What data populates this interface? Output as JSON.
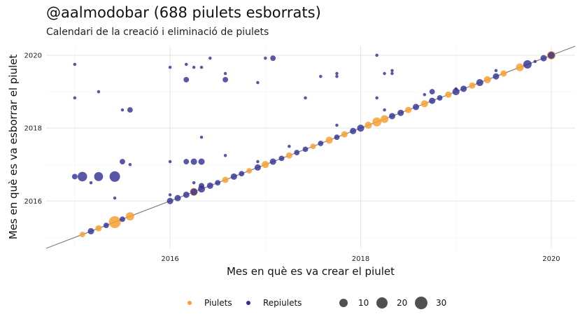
{
  "chart_data": {
    "type": "scatter",
    "title": "@aalmodobar (688 piulets esborrats)",
    "subtitle": "Calendari de la creació i eliminació de piulets",
    "xlabel": "Mes en què es va crear el piulet",
    "ylabel": "Mes en què es va esborrar el piulet",
    "xlim": [
      2014.7,
      2020.25
    ],
    "ylim": [
      2014.7,
      2020.25
    ],
    "xticks": [
      "2016",
      "2018",
      "2020"
    ],
    "yticks": [
      "2016",
      "2018",
      "2020"
    ],
    "grid": true,
    "reference_line": "y = x",
    "legend_position": "bottom",
    "series": [
      {
        "name": "Piulets",
        "color": "#F7A033",
        "points": [
          [
            2015.08,
            2015.08,
            6
          ],
          [
            2015.25,
            2015.25,
            8
          ],
          [
            2015.42,
            2015.42,
            28
          ],
          [
            2015.58,
            2015.58,
            14
          ],
          [
            2016.25,
            2016.25,
            12
          ],
          [
            2016.58,
            2016.58,
            8
          ],
          [
            2016.83,
            2016.83,
            6
          ],
          [
            2017.0,
            2017.0,
            10
          ],
          [
            2017.25,
            2017.25,
            8
          ],
          [
            2017.5,
            2017.5,
            6
          ],
          [
            2017.67,
            2017.67,
            10
          ],
          [
            2017.83,
            2017.83,
            8
          ],
          [
            2018.08,
            2018.08,
            10
          ],
          [
            2018.17,
            2018.17,
            16
          ],
          [
            2018.25,
            2018.25,
            12
          ],
          [
            2018.5,
            2018.5,
            8
          ],
          [
            2018.67,
            2018.67,
            10
          ],
          [
            2018.92,
            2018.92,
            8
          ],
          [
            2019.17,
            2019.17,
            8
          ],
          [
            2019.33,
            2019.33,
            10
          ],
          [
            2019.5,
            2019.5,
            8
          ],
          [
            2019.67,
            2019.67,
            12
          ],
          [
            2020.0,
            2020.0,
            14
          ]
        ]
      },
      {
        "name": "Repiulets",
        "color": "#302D91",
        "points": [
          [
            2015.0,
            2016.67,
            6
          ],
          [
            2015.08,
            2016.67,
            18
          ],
          [
            2015.17,
            2016.5,
            2
          ],
          [
            2015.25,
            2016.67,
            16
          ],
          [
            2015.42,
            2016.67,
            22
          ],
          [
            2015.42,
            2016.08,
            2
          ],
          [
            2015.58,
            2017.0,
            2
          ],
          [
            2015.5,
            2017.08,
            6
          ],
          [
            2015.0,
            2019.75,
            2
          ],
          [
            2015.0,
            2018.83,
            2
          ],
          [
            2015.25,
            2019.0,
            2
          ],
          [
            2015.5,
            2018.5,
            2
          ],
          [
            2015.58,
            2018.5,
            6
          ],
          [
            2015.17,
            2015.17,
            8
          ],
          [
            2015.33,
            2015.33,
            6
          ],
          [
            2015.5,
            2015.5,
            6
          ],
          [
            2016.0,
            2016.0,
            8
          ],
          [
            2016.08,
            2016.08,
            8
          ],
          [
            2016.17,
            2016.17,
            8
          ],
          [
            2016.25,
            2016.25,
            10
          ],
          [
            2016.33,
            2016.33,
            10
          ],
          [
            2016.42,
            2016.42,
            8
          ],
          [
            2016.5,
            2016.5,
            6
          ],
          [
            2016.67,
            2016.67,
            8
          ],
          [
            2016.75,
            2016.75,
            6
          ],
          [
            2016.92,
            2016.92,
            8
          ],
          [
            2017.08,
            2017.08,
            8
          ],
          [
            2017.17,
            2017.17,
            6
          ],
          [
            2017.33,
            2017.33,
            6
          ],
          [
            2017.42,
            2017.42,
            6
          ],
          [
            2017.58,
            2017.58,
            6
          ],
          [
            2017.75,
            2017.75,
            6
          ],
          [
            2017.92,
            2017.92,
            8
          ],
          [
            2018.0,
            2018.0,
            10
          ],
          [
            2018.33,
            2018.33,
            8
          ],
          [
            2018.42,
            2018.42,
            8
          ],
          [
            2018.58,
            2018.58,
            8
          ],
          [
            2018.75,
            2018.75,
            8
          ],
          [
            2018.83,
            2018.83,
            6
          ],
          [
            2019.0,
            2019.0,
            10
          ],
          [
            2019.08,
            2019.08,
            8
          ],
          [
            2019.25,
            2019.25,
            10
          ],
          [
            2019.42,
            2019.42,
            8
          ],
          [
            2019.75,
            2019.75,
            14
          ],
          [
            2019.92,
            2019.92,
            8
          ],
          [
            2020.0,
            2020.0,
            10
          ],
          [
            2016.0,
            2019.67,
            2
          ],
          [
            2016.17,
            2019.75,
            2
          ],
          [
            2016.17,
            2019.33,
            6
          ],
          [
            2016.25,
            2019.67,
            2
          ],
          [
            2016.33,
            2019.67,
            2
          ],
          [
            2016.42,
            2019.92,
            2
          ],
          [
            2016.58,
            2019.5,
            2
          ],
          [
            2016.58,
            2019.33,
            6
          ],
          [
            2017.0,
            2019.92,
            2
          ],
          [
            2017.08,
            2019.92,
            6
          ],
          [
            2016.92,
            2019.25,
            2
          ],
          [
            2017.42,
            2018.83,
            2
          ],
          [
            2017.58,
            2019.42,
            2
          ],
          [
            2017.75,
            2019.5,
            2
          ],
          [
            2017.75,
            2019.42,
            2
          ],
          [
            2017.75,
            2018.08,
            2
          ],
          [
            2016.0,
            2017.08,
            2
          ],
          [
            2016.17,
            2017.08,
            6
          ],
          [
            2016.25,
            2017.08,
            8
          ],
          [
            2016.33,
            2017.08,
            8
          ],
          [
            2016.33,
            2017.75,
            2
          ],
          [
            2016.58,
            2017.25,
            2
          ],
          [
            2016.92,
            2017.08,
            2
          ],
          [
            2017.25,
            2017.5,
            2
          ],
          [
            2016.0,
            2016.17,
            2
          ],
          [
            2016.25,
            2016.5,
            2
          ],
          [
            2016.33,
            2016.42,
            6
          ],
          [
            2018.17,
            2020.0,
            2
          ],
          [
            2018.25,
            2019.5,
            2
          ],
          [
            2018.33,
            2019.58,
            2
          ],
          [
            2018.33,
            2019.5,
            2
          ],
          [
            2018.25,
            2018.5,
            2
          ],
          [
            2018.17,
            2018.83,
            2
          ],
          [
            2018.67,
            2018.92,
            2
          ],
          [
            2018.75,
            2019.0,
            6
          ],
          [
            2019.0,
            2019.08,
            2
          ],
          [
            2019.42,
            2019.58,
            2
          ],
          [
            2019.83,
            2019.83,
            2
          ]
        ]
      }
    ],
    "size_legend": {
      "values": [
        10,
        20,
        30
      ],
      "labels": [
        "10",
        "20",
        "30"
      ]
    }
  }
}
